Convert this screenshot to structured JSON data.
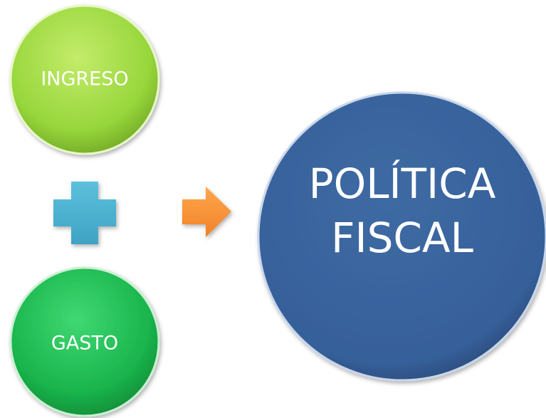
{
  "nodes": [
    {
      "label": "INGRESO"
    },
    {
      "label": "GASTO"
    },
    {
      "label_lines": [
        "POLÍTICA",
        "FISCAL"
      ]
    }
  ]
}
